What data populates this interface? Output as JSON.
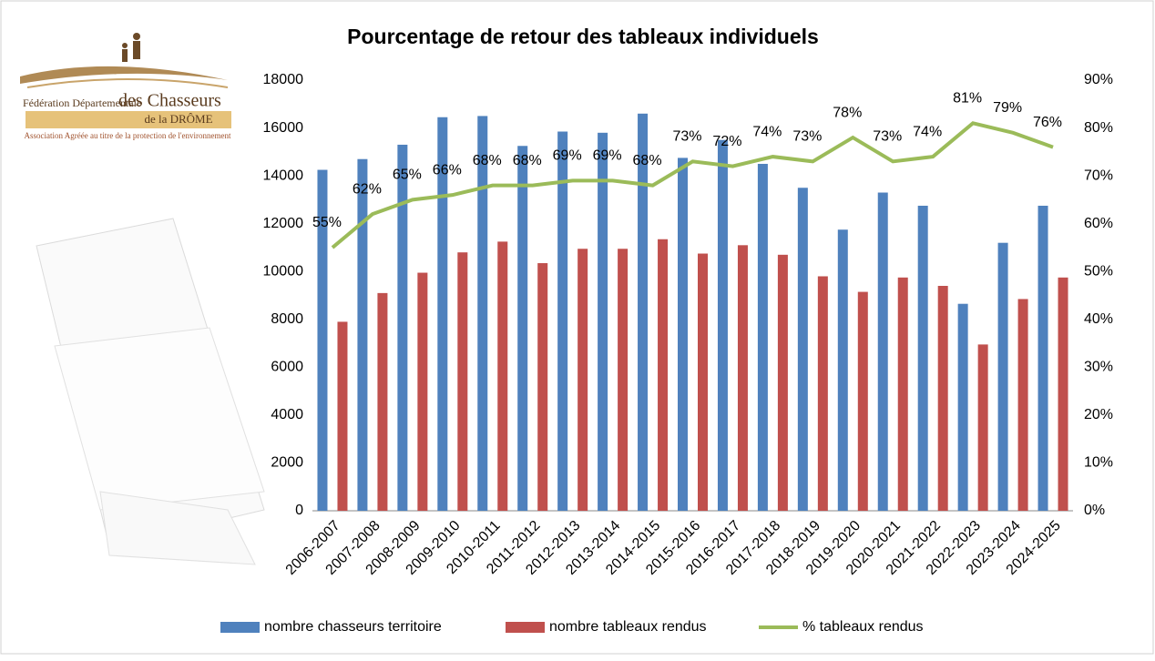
{
  "logo": {
    "line1": "Fédération Départementale",
    "line2": "des Chasseurs",
    "line3": "de la DRÔME",
    "line4": "Association Agréée au titre de la protection de l'environnement"
  },
  "chart_data": {
    "type": "bar",
    "title": "Pourcentage de retour des tableaux individuels",
    "categories": [
      "2006-2007",
      "2007-2008",
      "2008-2009",
      "2009-2010",
      "2010-2011",
      "2011-2012",
      "2012-2013",
      "2013-2014",
      "2014-2015",
      "2015-2016",
      "2016-2017",
      "2017-2018",
      "2018-2019",
      "2019-2020",
      "2020-2021",
      "2021-2022",
      "2022-2023",
      "2023-2024",
      "2024-2025"
    ],
    "series": [
      {
        "name": "nombre chasseurs territoire",
        "type": "bar",
        "color": "#4f81bd",
        "values": [
          14250,
          14700,
          15300,
          16450,
          16500,
          15250,
          15850,
          15800,
          16600,
          14750,
          15500,
          14500,
          13500,
          11750,
          13300,
          12750,
          8650,
          11200,
          12750
        ]
      },
      {
        "name": "nombre tableaux rendus",
        "type": "bar",
        "color": "#c0504d",
        "values": [
          7900,
          9100,
          9950,
          10800,
          11250,
          10350,
          10950,
          10950,
          11350,
          10750,
          11100,
          10700,
          9800,
          9150,
          9750,
          9400,
          6950,
          8850,
          9750
        ]
      },
      {
        "name": "% tableaux rendus",
        "type": "line",
        "axis": "y2",
        "color": "#9bbb59",
        "values": [
          55,
          62,
          65,
          66,
          68,
          68,
          69,
          69,
          68,
          73,
          72,
          74,
          73,
          78,
          73,
          74,
          81,
          79,
          76
        ],
        "value_labels": [
          "55%",
          "62%",
          "65%",
          "66%",
          "68%",
          "68%",
          "69%",
          "69%",
          "68%",
          "73%",
          "72%",
          "74%",
          "73%",
          "78%",
          "73%",
          "74%",
          "81%",
          "79%",
          "76%"
        ]
      }
    ],
    "ylim": [
      0,
      18000
    ],
    "yticks": [
      0,
      2000,
      4000,
      6000,
      8000,
      10000,
      12000,
      14000,
      16000,
      18000
    ],
    "y2lim": [
      0,
      90
    ],
    "y2ticks": [
      {
        "value": 0,
        "label": "0%"
      },
      {
        "value": 10,
        "label": "10%"
      },
      {
        "value": 20,
        "label": "20%"
      },
      {
        "value": 30,
        "label": "30%"
      },
      {
        "value": 40,
        "label": "40%"
      },
      {
        "value": 50,
        "label": "50%"
      },
      {
        "value": 60,
        "label": "60%"
      },
      {
        "value": 70,
        "label": "70%"
      },
      {
        "value": 80,
        "label": "80%"
      },
      {
        "value": 90,
        "label": "90%"
      }
    ],
    "grid": false,
    "legend": "bottom"
  }
}
